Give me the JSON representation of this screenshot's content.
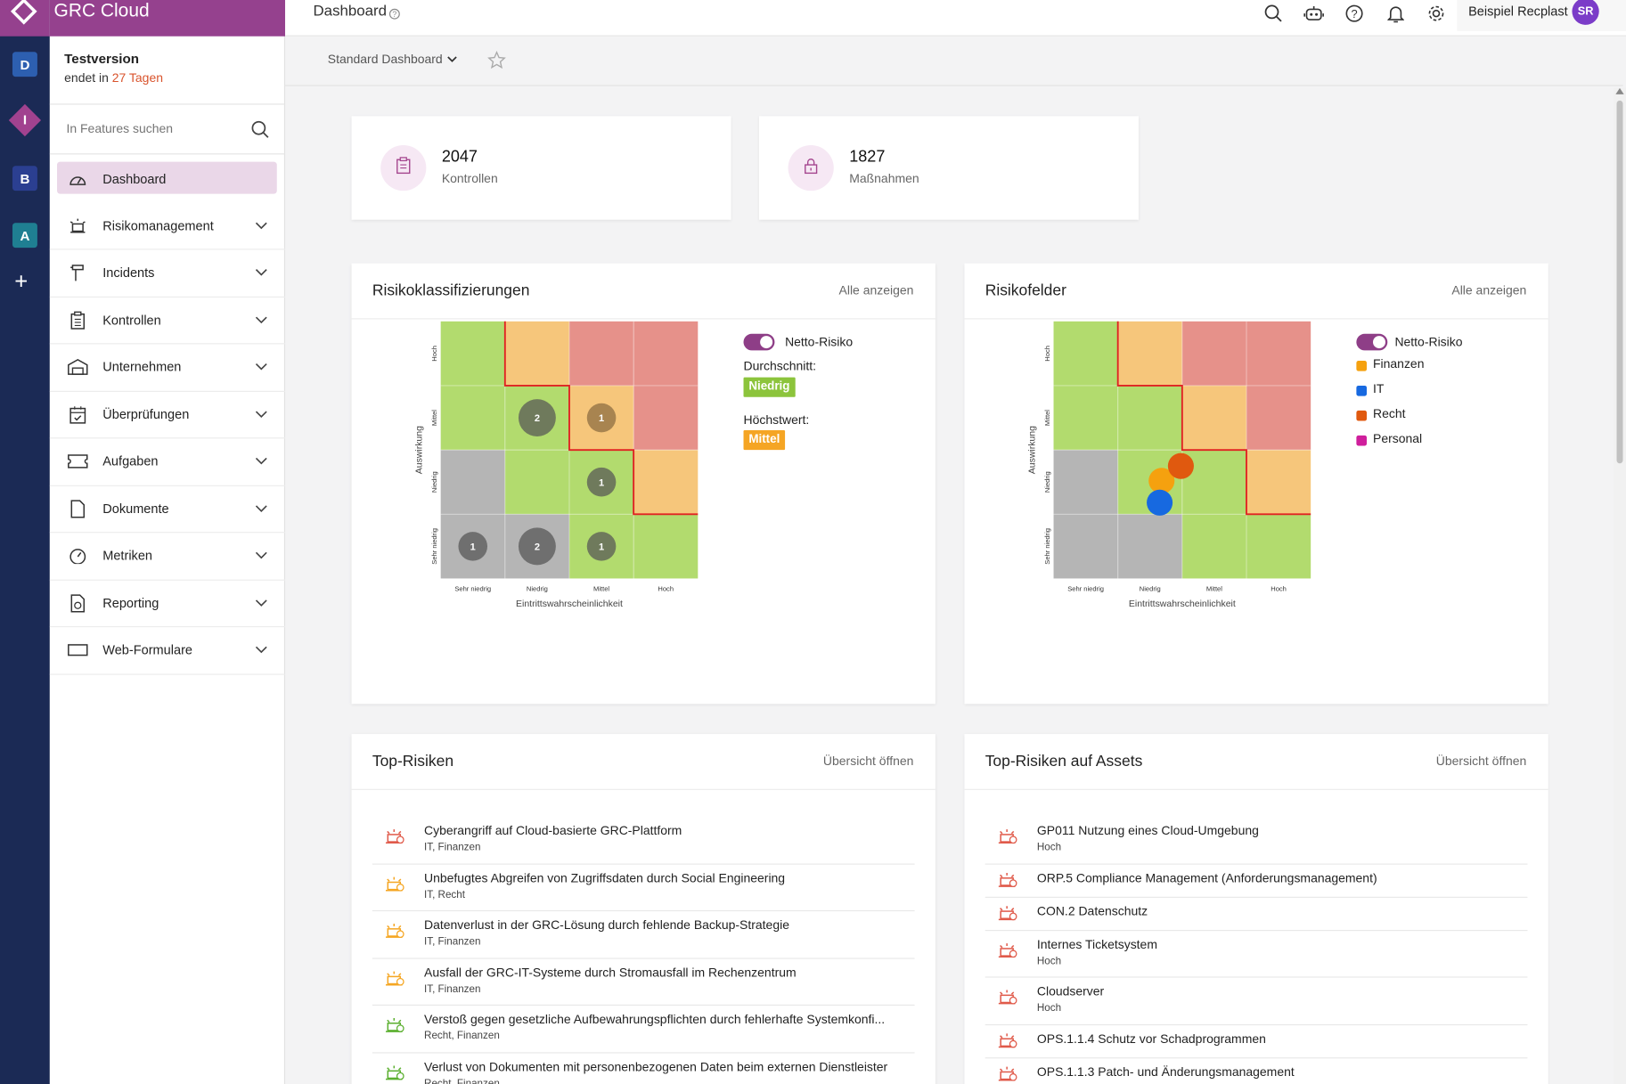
{
  "app": {
    "name": "GRC Cloud",
    "page_title": "Dashboard"
  },
  "rail": {
    "items": [
      "D",
      "I",
      "B",
      "A",
      "+"
    ]
  },
  "trial": {
    "title": "Testversion",
    "ends_prefix": "endet in",
    "ends_value": "27 Tagen"
  },
  "search": {
    "placeholder": "In Features suchen"
  },
  "nav": {
    "items": [
      {
        "label": "Dashboard",
        "icon": "gauge-icon",
        "active": true
      },
      {
        "label": "Risikomanagement",
        "icon": "alarm-icon"
      },
      {
        "label": "Incidents",
        "icon": "incident-icon"
      },
      {
        "label": "Kontrollen",
        "icon": "clipboard-icon"
      },
      {
        "label": "Unternehmen",
        "icon": "building-icon"
      },
      {
        "label": "Überprüfungen",
        "icon": "calendar-check-icon"
      },
      {
        "label": "Aufgaben",
        "icon": "ticket-icon"
      },
      {
        "label": "Dokumente",
        "icon": "document-icon"
      },
      {
        "label": "Metriken",
        "icon": "gauge-icon"
      },
      {
        "label": "Reporting",
        "icon": "report-icon"
      },
      {
        "label": "Web-Formulare",
        "icon": "form-icon"
      }
    ]
  },
  "topbar": {
    "user_name": "Beispiel Recplast",
    "user_initials": "SR"
  },
  "dashboard": {
    "selector_label": "Standard Dashboard"
  },
  "stats": [
    {
      "value": "2047",
      "label": "Kontrollen",
      "icon": "clipboard-icon"
    },
    {
      "value": "1827",
      "label": "Maßnahmen",
      "icon": "lock-icon"
    }
  ],
  "risk_classification": {
    "title": "Risikoklassifizierungen",
    "link": "Alle anzeigen",
    "x_label": "Eintrittswahrscheinlichkeit",
    "y_label": "Auswirkung",
    "x_ticks": [
      "Sehr niedrig",
      "Niedrig",
      "Mittel",
      "Hoch"
    ],
    "y_ticks": [
      "Sehr niedrig",
      "Niedrig",
      "Mittel",
      "Hoch"
    ],
    "toggle_label": "Netto-Risiko",
    "avg_label": "Durchschnitt:",
    "avg_value": "Niedrig",
    "max_label": "Höchstwert:",
    "max_value": "Mittel",
    "counts": [
      {
        "likelihood": "Niedrig",
        "impact": "Mittel",
        "count": "2"
      },
      {
        "likelihood": "Mittel",
        "impact": "Mittel",
        "count": "1"
      },
      {
        "likelihood": "Mittel",
        "impact": "Niedrig",
        "count": "1"
      },
      {
        "likelihood": "Sehr niedrig",
        "impact": "Sehr niedrig",
        "count": "1"
      },
      {
        "likelihood": "Niedrig",
        "impact": "Sehr niedrig",
        "count": "2"
      },
      {
        "likelihood": "Mittel",
        "impact": "Sehr niedrig",
        "count": "1"
      }
    ]
  },
  "risk_fields": {
    "title": "Risikofelder",
    "link": "Alle anzeigen",
    "x_label": "Eintrittswahrscheinlichkeit",
    "y_label": "Auswirkung",
    "x_ticks": [
      "Sehr niedrig",
      "Niedrig",
      "Mittel",
      "Hoch"
    ],
    "y_ticks": [
      "Sehr niedrig",
      "Niedrig",
      "Mittel",
      "Hoch"
    ],
    "toggle_label": "Netto-Risiko",
    "legend": [
      {
        "label": "Finanzen",
        "color": "#f5a10f"
      },
      {
        "label": "IT",
        "color": "#1769e0"
      },
      {
        "label": "Recht",
        "color": "#e0590f"
      },
      {
        "label": "Personal",
        "color": "#cf1f9c"
      }
    ]
  },
  "matrix_colors": {
    "gray": "#b5b5b5",
    "green": "#b2db6e",
    "orange": "#f6c67b",
    "red": "#e6918a",
    "boundary": "#e02222"
  },
  "top_risks": {
    "title": "Top-Risiken",
    "link": "Übersicht öffnen",
    "items": [
      {
        "title": "Cyberangriff auf Cloud-basierte GRC-Plattform",
        "sub": "IT, Finanzen",
        "level_color": "#e05a4a"
      },
      {
        "title": "Unbefugtes Abgreifen von Zugriffsdaten durch Social Engineering",
        "sub": "IT, Recht",
        "level_color": "#f5a623"
      },
      {
        "title": "Datenverlust in der GRC-Lösung durch fehlende Backup-Strategie",
        "sub": "IT, Finanzen",
        "level_color": "#f5a623"
      },
      {
        "title": "Ausfall der GRC-IT-Systeme durch Stromausfall im Rechenzentrum",
        "sub": "IT, Finanzen",
        "level_color": "#f5a623"
      },
      {
        "title": "Verstoß gegen gesetzliche Aufbewahrungspflichten durch fehlerhafte Systemkonfi...",
        "sub": "Recht, Finanzen",
        "level_color": "#5cb030"
      },
      {
        "title": "Verlust von Dokumenten mit personenbezogenen Daten beim externen Dienstleister",
        "sub": "Recht, Finanzen",
        "level_color": "#5cb030"
      }
    ]
  },
  "top_asset_risks": {
    "title": "Top-Risiken auf Assets",
    "link": "Übersicht öffnen",
    "items": [
      {
        "title": "GP011 Nutzung eines Cloud-Umgebung",
        "sub": "Hoch"
      },
      {
        "title": "ORP.5 Compliance Management (Anforderungsmanagement)",
        "sub": ""
      },
      {
        "title": "CON.2 Datenschutz",
        "sub": ""
      },
      {
        "title": "Internes Ticketsystem",
        "sub": "Hoch"
      },
      {
        "title": "Cloudserver",
        "sub": "Hoch"
      },
      {
        "title": "OPS.1.1.4 Schutz vor Schadprogrammen",
        "sub": ""
      },
      {
        "title": "OPS.1.1.3 Patch- und Änderungsmanagement",
        "sub": ""
      }
    ]
  }
}
